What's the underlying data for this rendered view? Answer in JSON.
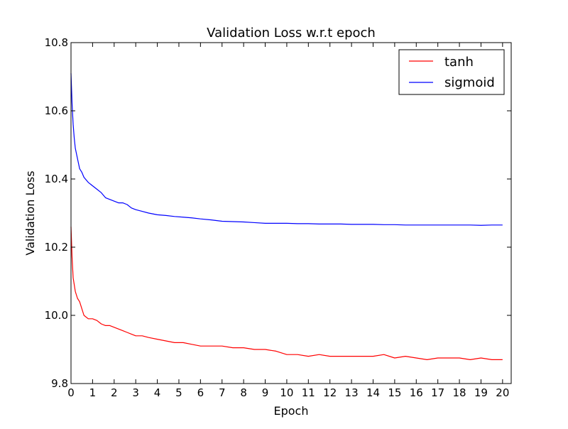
{
  "chart_data": {
    "type": "line",
    "title": "Validation Loss w.r.t epoch",
    "xlabel": "Epoch",
    "ylabel": "Validation Loss",
    "xlim": [
      0,
      20.4
    ],
    "ylim": [
      9.8,
      10.8
    ],
    "xticks": [
      "0",
      "1",
      "2",
      "3",
      "4",
      "5",
      "6",
      "7",
      "8",
      "9",
      "10",
      "11",
      "12",
      "13",
      "14",
      "15",
      "16",
      "17",
      "18",
      "19",
      "20"
    ],
    "yticks": [
      "9.8",
      "10.0",
      "10.2",
      "10.4",
      "10.6",
      "10.8"
    ],
    "grid": false,
    "legend_position": "top-right",
    "series": [
      {
        "name": "tanh",
        "color": "#ff0000",
        "x": [
          0,
          0.05,
          0.1,
          0.2,
          0.3,
          0.4,
          0.5,
          0.6,
          0.8,
          1.0,
          1.2,
          1.4,
          1.6,
          1.8,
          2.0,
          2.2,
          2.4,
          2.6,
          2.8,
          3.0,
          3.3,
          3.6,
          4.0,
          4.4,
          4.8,
          5.2,
          5.6,
          6.0,
          6.5,
          7.0,
          7.5,
          8.0,
          8.5,
          9.0,
          9.5,
          10.0,
          10.5,
          11.0,
          11.5,
          12.0,
          12.5,
          13.0,
          13.5,
          14.0,
          14.5,
          15.0,
          15.5,
          16.0,
          16.5,
          17.0,
          17.5,
          18.0,
          18.5,
          19.0,
          19.5,
          20.0
        ],
        "y": [
          10.26,
          10.17,
          10.11,
          10.07,
          10.05,
          10.04,
          10.02,
          10.0,
          9.99,
          9.99,
          9.985,
          9.975,
          9.97,
          9.97,
          9.965,
          9.96,
          9.955,
          9.95,
          9.945,
          9.94,
          9.94,
          9.935,
          9.93,
          9.925,
          9.92,
          9.92,
          9.915,
          9.91,
          9.91,
          9.91,
          9.905,
          9.905,
          9.9,
          9.9,
          9.895,
          9.885,
          9.885,
          9.88,
          9.885,
          9.88,
          9.88,
          9.88,
          9.88,
          9.88,
          9.885,
          9.875,
          9.88,
          9.875,
          9.87,
          9.875,
          9.875,
          9.875,
          9.87,
          9.875,
          9.87,
          9.87
        ]
      },
      {
        "name": "sigmoid",
        "color": "#0000ff",
        "x": [
          0,
          0.05,
          0.1,
          0.15,
          0.2,
          0.3,
          0.4,
          0.5,
          0.6,
          0.8,
          1.0,
          1.2,
          1.4,
          1.6,
          1.8,
          2.0,
          2.2,
          2.4,
          2.6,
          2.8,
          3.0,
          3.3,
          3.6,
          4.0,
          4.4,
          4.8,
          5.2,
          5.6,
          6.0,
          6.5,
          7.0,
          7.5,
          8.0,
          8.5,
          9.0,
          9.5,
          10.0,
          10.5,
          11.0,
          11.5,
          12.0,
          12.5,
          13.0,
          13.5,
          14.0,
          14.5,
          15.0,
          15.5,
          16.0,
          16.5,
          17.0,
          17.5,
          18.0,
          18.5,
          19.0,
          19.5,
          20.0
        ],
        "y": [
          10.71,
          10.62,
          10.56,
          10.52,
          10.49,
          10.46,
          10.43,
          10.42,
          10.405,
          10.39,
          10.38,
          10.37,
          10.36,
          10.345,
          10.34,
          10.335,
          10.33,
          10.33,
          10.325,
          10.315,
          10.31,
          10.305,
          10.3,
          10.295,
          10.293,
          10.29,
          10.288,
          10.286,
          10.283,
          10.28,
          10.276,
          10.275,
          10.274,
          10.272,
          10.27,
          10.27,
          10.27,
          10.269,
          10.269,
          10.268,
          10.268,
          10.268,
          10.267,
          10.267,
          10.267,
          10.266,
          10.266,
          10.265,
          10.265,
          10.265,
          10.265,
          10.265,
          10.265,
          10.265,
          10.264,
          10.265,
          10.265
        ]
      }
    ]
  }
}
